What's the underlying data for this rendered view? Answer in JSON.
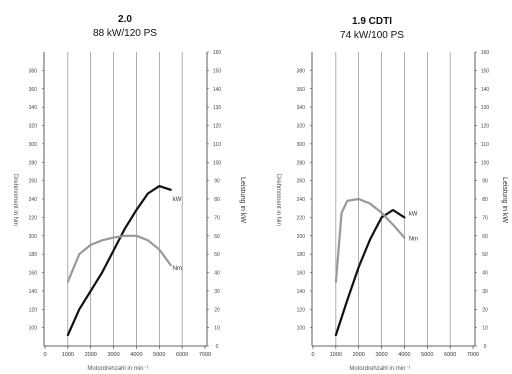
{
  "chart_data": [
    {
      "type": "line",
      "title": "2.0",
      "subtitle": "88 kW/120 PS",
      "xlabel": "Motordrehzahl in min⁻¹",
      "ylabel_left": "Drehmoment in Nm",
      "ylabel_right": "Leistung in kW",
      "x_ticks": [
        0,
        1000,
        2000,
        3000,
        4000,
        5000,
        6000,
        7000
      ],
      "x_tick_labels": [
        "0",
        "1000",
        "2000",
        "3000",
        "4000",
        "5000",
        "6000",
        "7000"
      ],
      "xlim": [
        0,
        7000
      ],
      "y_left_ticks": [
        100,
        120,
        140,
        160,
        180,
        200,
        220,
        240,
        260,
        280,
        300,
        320,
        340,
        360,
        380
      ],
      "y_left_lim": [
        80,
        400
      ],
      "y_right_ticks": [
        0,
        10,
        20,
        30,
        40,
        50,
        60,
        70,
        80,
        90,
        100,
        110,
        120,
        130,
        140,
        150,
        160
      ],
      "y_right_lim": [
        0,
        160
      ],
      "grid": "vertical",
      "series": [
        {
          "name": "kW",
          "axis": "right",
          "color": "#111111",
          "x": [
            1000,
            1500,
            2000,
            2500,
            3000,
            3500,
            4000,
            4500,
            5000,
            5500
          ],
          "y": [
            6,
            20,
            30,
            40,
            52,
            64,
            74,
            83,
            87,
            85
          ],
          "label_at": [
            5500,
            80
          ]
        },
        {
          "name": "Nm",
          "axis": "left",
          "color": "#999999",
          "x": [
            1000,
            1500,
            2000,
            2500,
            3000,
            3500,
            4000,
            4500,
            5000,
            5500
          ],
          "y": [
            150,
            180,
            190,
            195,
            198,
            200,
            200,
            195,
            185,
            168
          ],
          "label_at": [
            5500,
            165
          ]
        }
      ]
    },
    {
      "type": "line",
      "title": "1.9 CDTI",
      "subtitle": "74 kW/100 PS",
      "xlabel": "Motordrehzahl in min⁻¹",
      "ylabel_left": "Drehmoment in Nm",
      "ylabel_right": "Leistung in kW",
      "x_ticks": [
        0,
        1000,
        2000,
        3000,
        4000,
        5000,
        6000,
        7000
      ],
      "x_tick_labels": [
        "0",
        "1000",
        "2000",
        "3000",
        "4000",
        "5000",
        "6000",
        "7000"
      ],
      "xlim": [
        0,
        7000
      ],
      "y_left_ticks": [
        100,
        120,
        140,
        160,
        180,
        200,
        220,
        240,
        260,
        280,
        300,
        320,
        340,
        360,
        380
      ],
      "y_left_lim": [
        80,
        400
      ],
      "y_right_ticks": [
        0,
        10,
        20,
        30,
        40,
        50,
        60,
        70,
        80,
        90,
        100,
        110,
        120,
        130,
        140,
        150,
        160
      ],
      "y_right_lim": [
        0,
        160
      ],
      "grid": "vertical",
      "series": [
        {
          "name": "kW",
          "axis": "right",
          "color": "#111111",
          "x": [
            1000,
            1500,
            2000,
            2500,
            3000,
            3500,
            4000
          ],
          "y": [
            6,
            25,
            43,
            58,
            70,
            74,
            70
          ],
          "label_at": [
            4100,
            72
          ]
        },
        {
          "name": "Nm",
          "axis": "left",
          "color": "#999999",
          "x": [
            1000,
            1250,
            1500,
            2000,
            2500,
            3000,
            3500,
            4000
          ],
          "y": [
            150,
            225,
            238,
            240,
            235,
            225,
            212,
            198
          ],
          "label_at": [
            4100,
            197
          ]
        }
      ]
    }
  ]
}
